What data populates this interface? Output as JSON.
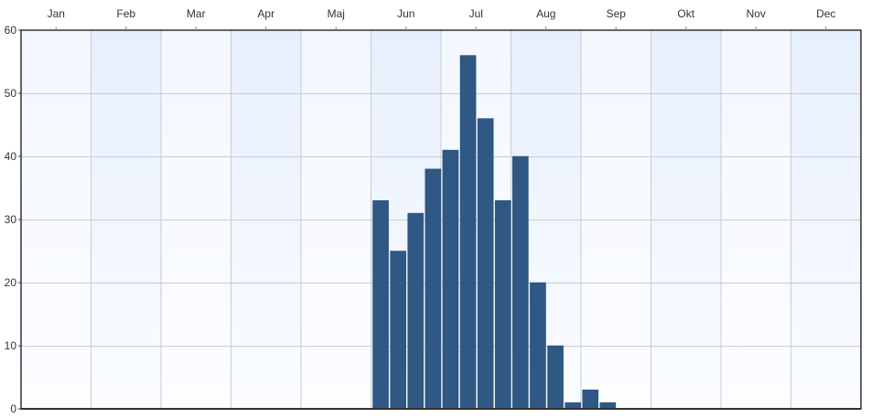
{
  "chart_data": {
    "type": "bar",
    "title": "",
    "xlabel": "",
    "ylabel": "",
    "month_labels": [
      "Jan",
      "Feb",
      "Mar",
      "Apr",
      "Maj",
      "Jun",
      "Jul",
      "Aug",
      "Sep",
      "Okt",
      "Nov",
      "Dec"
    ],
    "x_axis_position": "top",
    "ylim": [
      0,
      60
    ],
    "y_ticks": [
      0,
      10,
      20,
      30,
      40,
      50,
      60
    ],
    "grid": true,
    "bar_unit": "week",
    "bars": [
      {
        "week": 22,
        "value": 33
      },
      {
        "week": 23,
        "value": 25
      },
      {
        "week": 24,
        "value": 31
      },
      {
        "week": 25,
        "value": 38
      },
      {
        "week": 26,
        "value": 41
      },
      {
        "week": 27,
        "value": 56
      },
      {
        "week": 28,
        "value": 46
      },
      {
        "week": 29,
        "value": 33
      },
      {
        "week": 30,
        "value": 40
      },
      {
        "week": 31,
        "value": 20
      },
      {
        "week": 32,
        "value": 10
      },
      {
        "week": 33,
        "value": 1
      },
      {
        "week": 34,
        "value": 3
      },
      {
        "week": 35,
        "value": 1
      }
    ],
    "colors": {
      "bar": "#2f5984",
      "bar_stroke": "#24476b",
      "grid": "#c8ccd2",
      "axis": "#333333",
      "band_a": "#eef4fd",
      "band_b": "#f8faff"
    }
  }
}
